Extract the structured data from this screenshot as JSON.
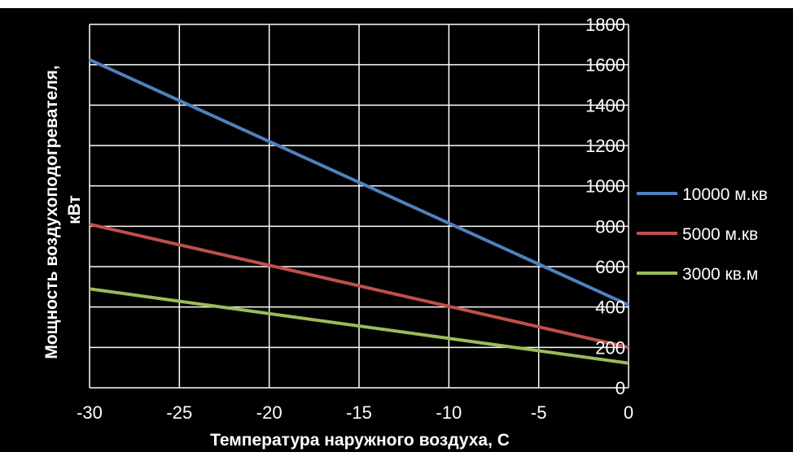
{
  "chart_data": {
    "type": "line",
    "title": "",
    "xlabel": "Температура наружного воздуха, С",
    "ylabel_lines": [
      "Мощность воздухоподогревателя,",
      "кВт"
    ],
    "xlim": [
      -30,
      0
    ],
    "ylim": [
      0,
      1800
    ],
    "x_ticks": [
      -30,
      -25,
      -20,
      -15,
      -10,
      -5,
      0
    ],
    "y_ticks": [
      0,
      200,
      400,
      600,
      800,
      1000,
      1200,
      1400,
      1600,
      1800
    ],
    "grid": true,
    "legend_position": "right",
    "series": [
      {
        "name": "10000 м.кв",
        "color": "#4f81bd",
        "x": [
          -30,
          0
        ],
        "y": [
          1625,
          410
        ]
      },
      {
        "name": "5000 м.кв",
        "color": "#c0504d",
        "x": [
          -30,
          0
        ],
        "y": [
          810,
          200
        ]
      },
      {
        "name": "3000 кв.м",
        "color": "#9bbb59",
        "x": [
          -30,
          0
        ],
        "y": [
          490,
          122
        ]
      }
    ]
  }
}
